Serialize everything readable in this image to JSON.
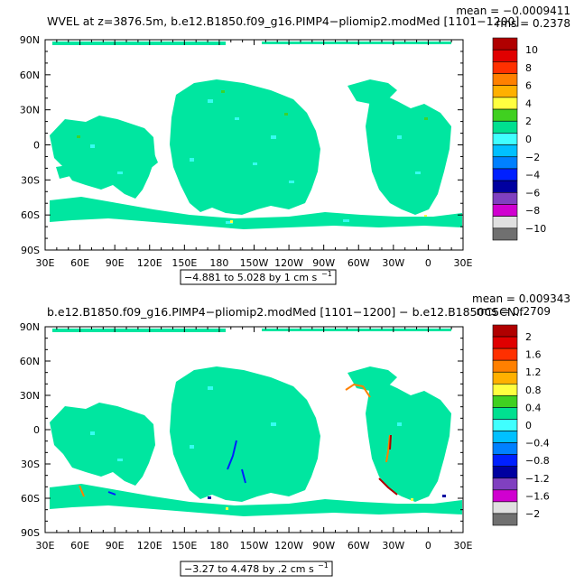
{
  "panels": [
    {
      "title": "WVEL at z=3876.5m, b.e12.B1850.f09_g16.PIMP4−pliomip2.modMed [1101−1200]",
      "mean_label": "mean = −0.0009411",
      "rms_label": "rms = 0.2378",
      "range_label": "−4.881 to 5.028 by 1 cm s",
      "range_exponent": "−1",
      "colorbar_labels": [
        "10",
        "8",
        "6",
        "4",
        "2",
        "0",
        "−2",
        "−4",
        "−6",
        "−8",
        "−10"
      ],
      "colorbar_colors": [
        "#b00000",
        "#e00000",
        "#ff3000",
        "#ff8000",
        "#ffb000",
        "#ffff40",
        "#40d020",
        "#00e090",
        "#40ffff",
        "#00c0ff",
        "#0080ff",
        "#0020ff",
        "#0000a0",
        "#8040c0",
        "#d000d0",
        "#e0e0e0",
        "#707070"
      ]
    },
    {
      "title": "b.e12.B1850.f09_g16.PIMP4−pliomip2.modMed [1101−1200] − b.e12.B1850C5CN.f",
      "mean_label": "mean = 0.009343",
      "rms_label": "rms = 0.2709",
      "range_label": "−3.27 to 4.478 by .2 cm s",
      "range_exponent": "−1",
      "colorbar_labels": [
        "2",
        "1.6",
        "1.2",
        "0.8",
        "0.4",
        "0",
        "−0.4",
        "−0.8",
        "−1.2",
        "−1.6",
        "−2"
      ],
      "colorbar_colors": [
        "#b00000",
        "#e00000",
        "#ff3000",
        "#ff8000",
        "#ffb000",
        "#ffff40",
        "#40d020",
        "#00e090",
        "#40ffff",
        "#00c0ff",
        "#0080ff",
        "#0020ff",
        "#0000a0",
        "#8040c0",
        "#d000d0",
        "#e0e0e0",
        "#707070"
      ]
    }
  ],
  "axes": {
    "lat_labels": [
      "90N",
      "60N",
      "30N",
      "0",
      "30S",
      "60S",
      "90S"
    ],
    "lon_labels": [
      "30E",
      "60E",
      "90E",
      "120E",
      "150E",
      "180",
      "150W",
      "120W",
      "90W",
      "60W",
      "30W",
      "0",
      "30E"
    ]
  },
  "colors": {
    "ocean_fill": "#00e6a0",
    "ocean_speckle": "#40ffff",
    "land": "#ffffff",
    "strong_positive": "#ff8000",
    "strong_negative": "#0020ff"
  }
}
